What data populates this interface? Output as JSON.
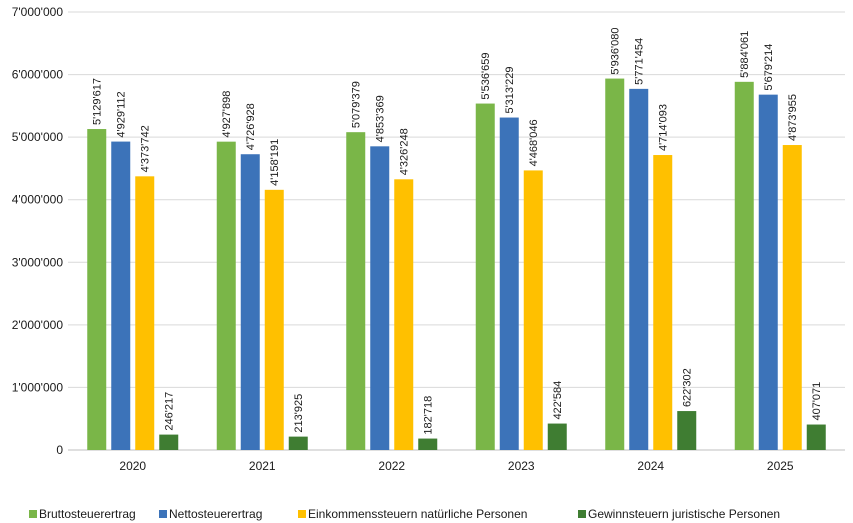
{
  "chart_data": {
    "type": "bar",
    "title": "",
    "xlabel": "",
    "ylabel": "",
    "categories": [
      "2020",
      "2021",
      "2022",
      "2023",
      "2024",
      "2025"
    ],
    "ylim": [
      0,
      7000000
    ],
    "yticks": [
      0,
      1000000,
      2000000,
      3000000,
      4000000,
      5000000,
      6000000,
      7000000
    ],
    "ytick_labels": [
      "0",
      "1'000'000",
      "2'000'000",
      "3'000'000",
      "4'000'000",
      "5'000'000",
      "6'000'000",
      "7'000'000"
    ],
    "grid": true,
    "legend_position": "bottom",
    "series": [
      {
        "name": "Bruttosteuerertrag",
        "color": "#7ab648",
        "values": [
          5129617,
          4927898,
          5079379,
          5536659,
          5936080,
          5884061
        ],
        "labels": [
          "5'129'617",
          "4'927'898",
          "5'079'379",
          "5'536'659",
          "5'936'080",
          "5'884'061"
        ]
      },
      {
        "name": "Nettosteuerertrag",
        "color": "#3c73b9",
        "values": [
          4929112,
          4726928,
          4853369,
          5313229,
          5771454,
          5679214
        ],
        "labels": [
          "4'929'112",
          "4'726'928",
          "4'853'369",
          "5'313'229",
          "5'771'454",
          "5'679'214"
        ]
      },
      {
        "name": "Einkommenssteuern natürliche Personen",
        "color": "#ffc000",
        "values": [
          4373742,
          4158191,
          4326248,
          4468046,
          4714093,
          4873955
        ],
        "labels": [
          "4'373'742",
          "4'158'191",
          "4'326'248",
          "4'468'046",
          "4'714'093",
          "4'873'955"
        ]
      },
      {
        "name": "Gewinnsteuern juristische Personen",
        "color": "#3f7d32",
        "values": [
          246217,
          213925,
          182718,
          422584,
          622302,
          407071
        ],
        "labels": [
          "246'217",
          "213'925",
          "182'718",
          "422'584",
          "622'302",
          "407'071"
        ]
      }
    ]
  }
}
